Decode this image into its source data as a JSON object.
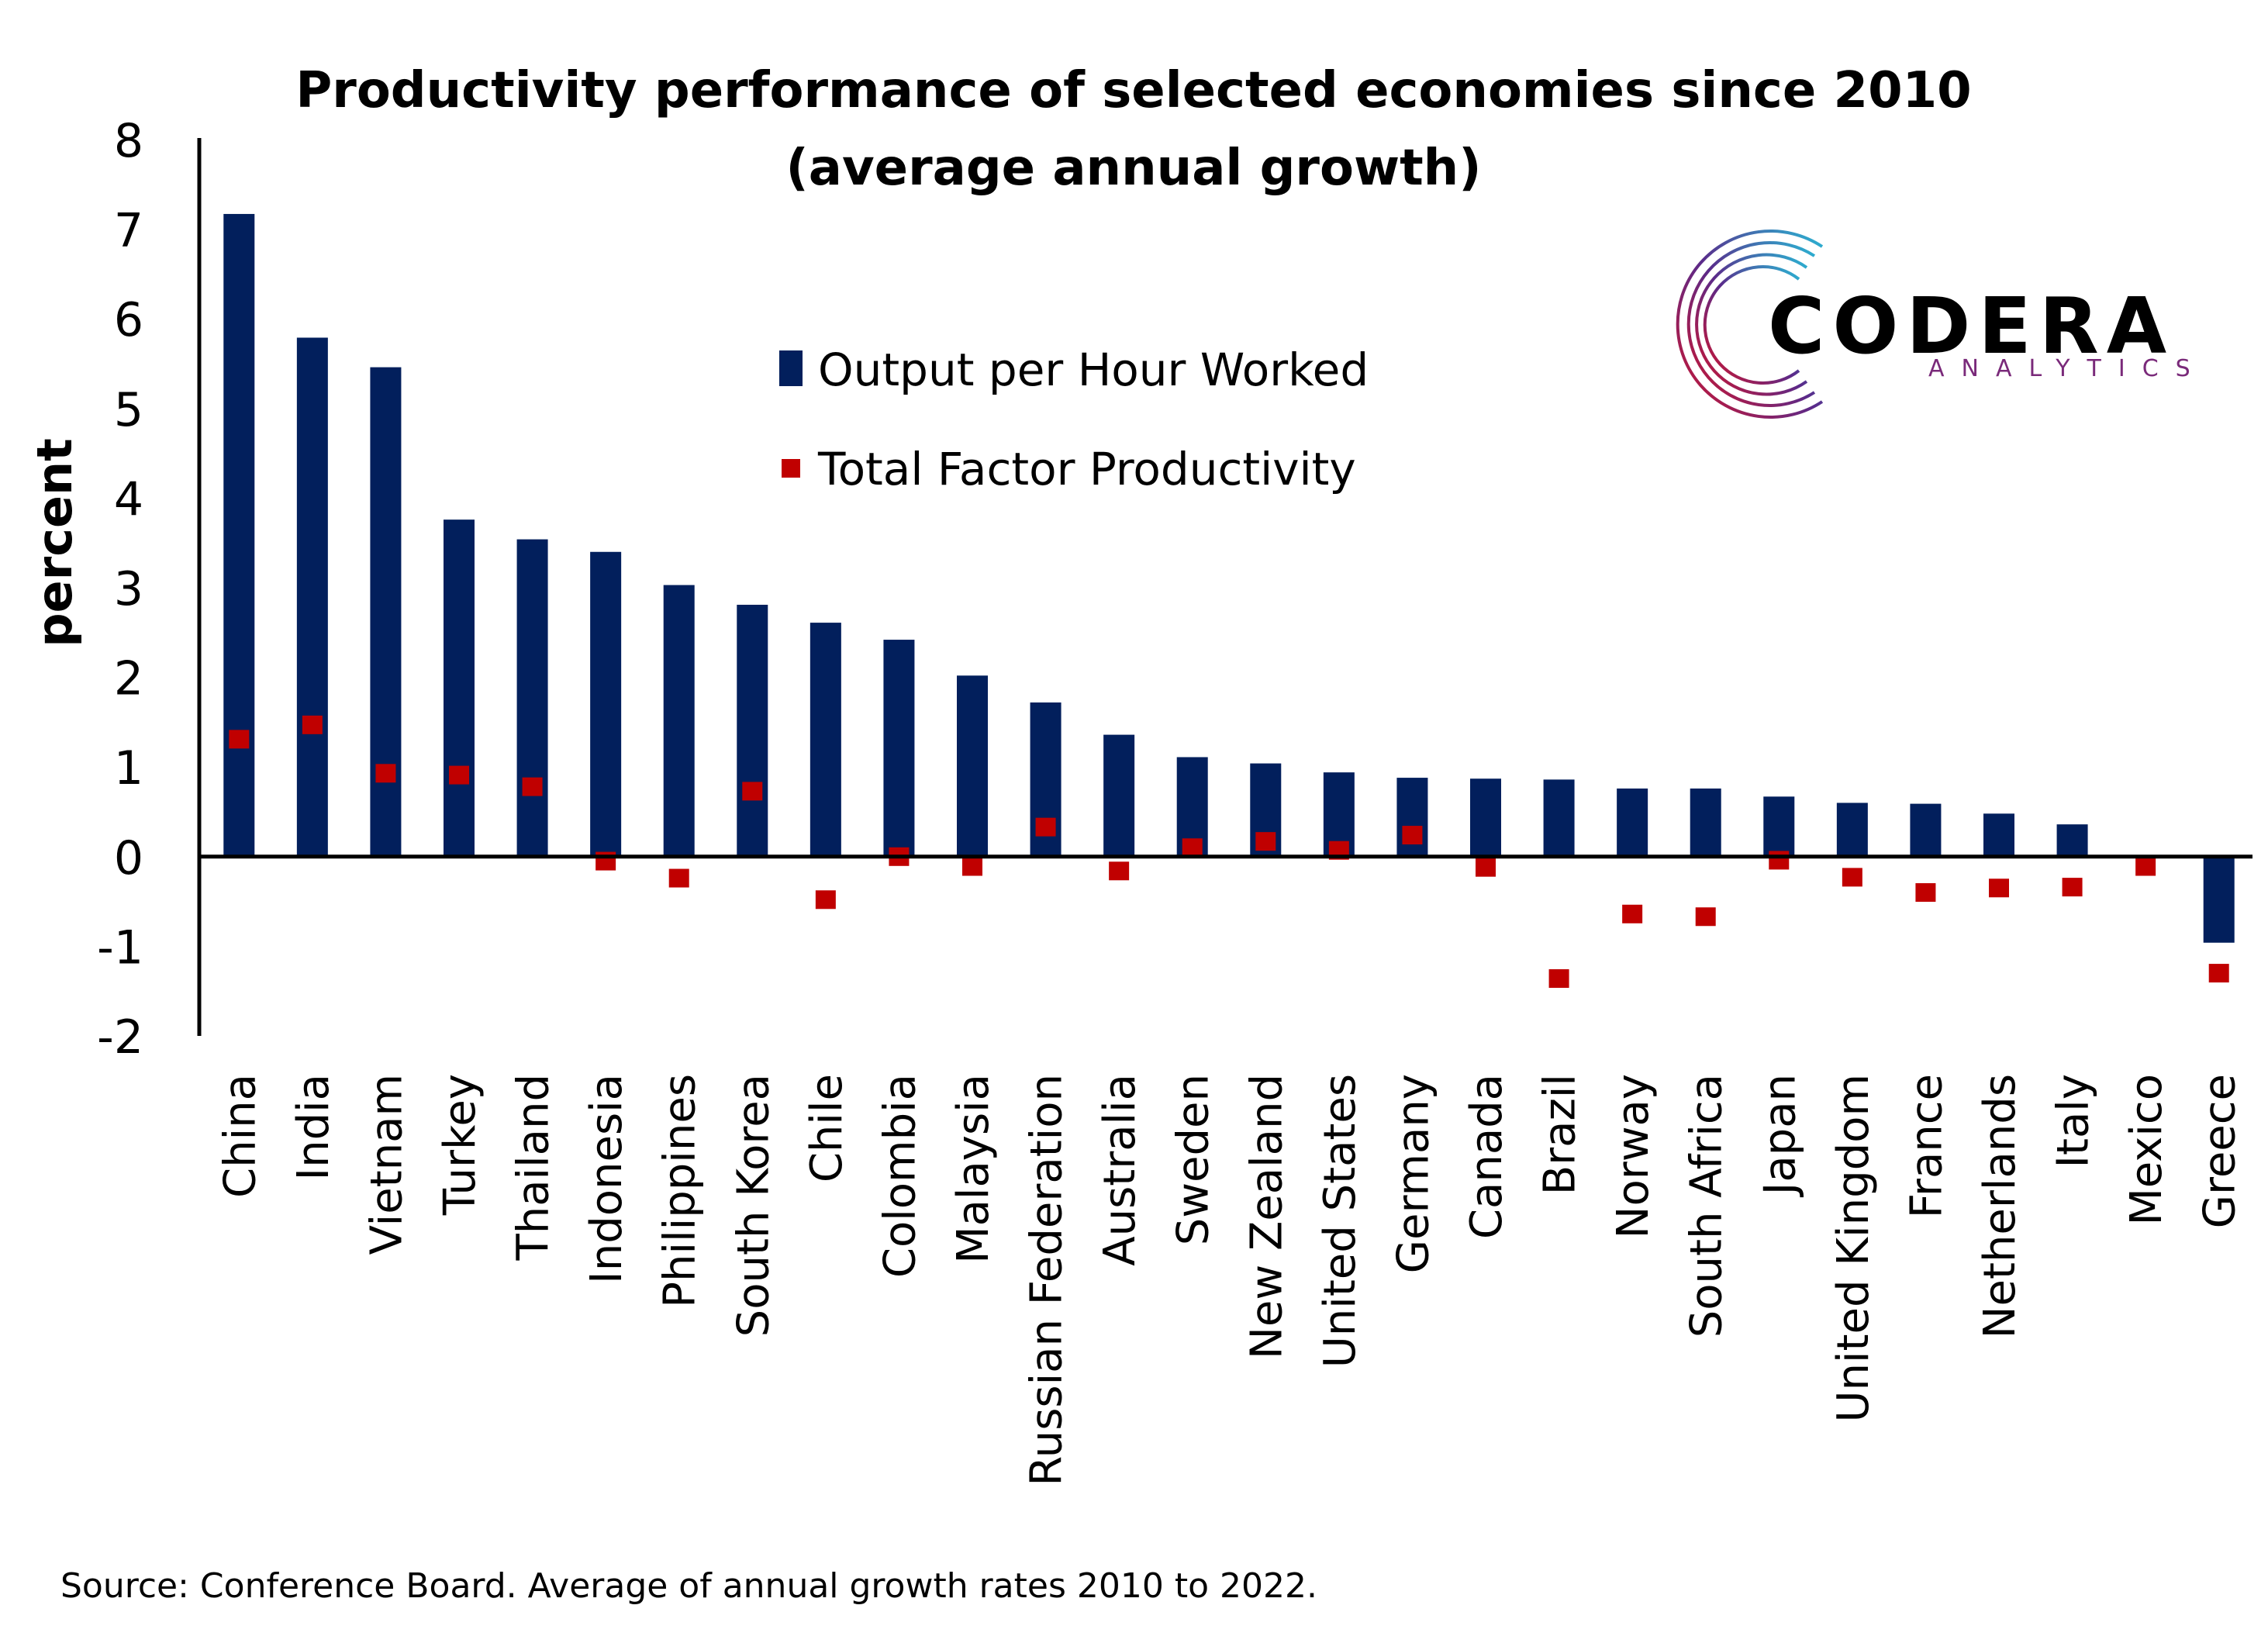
{
  "chart_data": {
    "type": "bar",
    "title": "Productivity performance of selected economies since 2010",
    "subtitle": "(average annual growth)",
    "xlabel": "",
    "ylabel": "percent",
    "ylim": [
      -2,
      8
    ],
    "yticks": [
      8,
      7,
      6,
      5,
      4,
      3,
      2,
      1,
      0,
      -1,
      -2
    ],
    "grid": false,
    "legend_position": "top-center",
    "categories": [
      "China",
      "India",
      "Vietnam",
      "Turkey",
      "Thailand",
      "Indonesia",
      "Philippines",
      "South Korea",
      "Chile",
      "Colombia",
      "Malaysia",
      "Russian Federation",
      "Australia",
      "Sweden",
      "New Zealand",
      "United States",
      "Germany",
      "Canada",
      "Brazil",
      "Norway",
      "South Africa",
      "Japan",
      "United Kingdom",
      "France",
      "Netherlands",
      "Italy",
      "Mexico",
      "Greece"
    ],
    "series": [
      {
        "name": "Output per Hour Worked",
        "kind": "bar",
        "color": "#021f5c",
        "values": [
          7.17,
          5.79,
          5.46,
          3.76,
          3.54,
          3.4,
          3.03,
          2.81,
          2.61,
          2.42,
          2.02,
          1.72,
          1.36,
          1.11,
          1.04,
          0.94,
          0.88,
          0.87,
          0.86,
          0.76,
          0.76,
          0.67,
          0.6,
          0.59,
          0.48,
          0.36,
          0.0,
          -0.96
        ]
      },
      {
        "name": "Total Factor Productivity",
        "kind": "marker",
        "color": "#c00000",
        "values": [
          1.31,
          1.47,
          0.93,
          0.91,
          0.78,
          -0.05,
          -0.24,
          0.73,
          -0.48,
          0.0,
          -0.11,
          0.33,
          -0.16,
          0.1,
          0.17,
          0.07,
          0.24,
          -0.12,
          -1.36,
          -0.64,
          -0.67,
          -0.04,
          -0.23,
          -0.4,
          -0.35,
          -0.34,
          -0.11,
          -1.3
        ]
      }
    ],
    "source": "Source: Conference Board. Average of annual growth rates 2010 to 2022."
  },
  "logo": {
    "name": "CODERA",
    "tagline": "ANALYTICS"
  }
}
